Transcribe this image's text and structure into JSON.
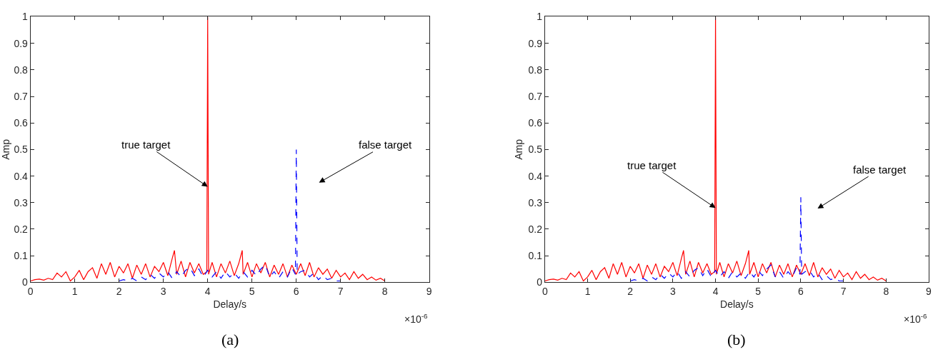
{
  "chart_data": [
    {
      "type": "line",
      "xlabel": "Delay/s",
      "ylabel": "Amp",
      "xlim": [
        0,
        9
      ],
      "xticks": [
        0,
        1,
        2,
        3,
        4,
        5,
        6,
        7,
        8,
        9
      ],
      "ylim": [
        0,
        1
      ],
      "yticks": [
        0,
        0.1,
        0.2,
        0.3,
        0.4,
        0.5,
        0.6,
        0.7,
        0.8,
        0.9,
        1
      ],
      "series": [
        {
          "color": "#ff0000",
          "line_style": "solid",
          "x": [
            0,
            0.1,
            0.2,
            0.3,
            0.4,
            0.5,
            0.6,
            0.7,
            0.8,
            0.9,
            1.0,
            1.1,
            1.2,
            1.3,
            1.4,
            1.5,
            1.6,
            1.7,
            1.8,
            1.9,
            2.0,
            2.1,
            2.2,
            2.3,
            2.4,
            2.5,
            2.6,
            2.7,
            2.8,
            2.9,
            3.0,
            3.1,
            3.2,
            3.25,
            3.3,
            3.4,
            3.5,
            3.6,
            3.7,
            3.8,
            3.9,
            3.98,
            4.0,
            4.02,
            4.1,
            4.2,
            4.3,
            4.4,
            4.5,
            4.6,
            4.7,
            4.78,
            4.8,
            4.9,
            5.0,
            5.1,
            5.2,
            5.3,
            5.4,
            5.5,
            5.6,
            5.7,
            5.8,
            5.9,
            6.0,
            6.1,
            6.2,
            6.3,
            6.4,
            6.5,
            6.6,
            6.7,
            6.8,
            6.9,
            7.0,
            7.1,
            7.2,
            7.3,
            7.4,
            7.5,
            7.6,
            7.7,
            7.8,
            7.9,
            8.0
          ],
          "values": [
            0.005,
            0.01,
            0.012,
            0.008,
            0.015,
            0.01,
            0.035,
            0.02,
            0.04,
            0.005,
            0.02,
            0.045,
            0.01,
            0.04,
            0.055,
            0.015,
            0.07,
            0.03,
            0.075,
            0.02,
            0.06,
            0.035,
            0.07,
            0.015,
            0.065,
            0.03,
            0.07,
            0.02,
            0.06,
            0.04,
            0.075,
            0.025,
            0.09,
            0.12,
            0.03,
            0.08,
            0.02,
            0.075,
            0.035,
            0.07,
            0.03,
            0.04,
            1,
            0.03,
            0.075,
            0.02,
            0.07,
            0.035,
            0.08,
            0.025,
            0.07,
            0.12,
            0.03,
            0.075,
            0.02,
            0.07,
            0.035,
            0.075,
            0.02,
            0.065,
            0.03,
            0.07,
            0.02,
            0.065,
            0.03,
            0.07,
            0.025,
            0.075,
            0.02,
            0.055,
            0.03,
            0.05,
            0.015,
            0.045,
            0.02,
            0.035,
            0.01,
            0.04,
            0.015,
            0.03,
            0.01,
            0.02,
            0.008,
            0.015,
            0.005
          ]
        },
        {
          "color": "#0000ff",
          "line_style": "dashed",
          "x": [
            2.0,
            2.1,
            2.2,
            2.3,
            2.4,
            2.5,
            2.6,
            2.7,
            2.8,
            2.9,
            3.0,
            3.1,
            3.2,
            3.3,
            3.4,
            3.5,
            3.6,
            3.7,
            3.8,
            3.9,
            4.0,
            4.1,
            4.2,
            4.3,
            4.4,
            4.5,
            4.6,
            4.7,
            4.8,
            4.9,
            5.0,
            5.1,
            5.2,
            5.3,
            5.4,
            5.5,
            5.6,
            5.7,
            5.8,
            5.9,
            5.98,
            6.0,
            6.02,
            6.1,
            6.2,
            6.3,
            6.4,
            6.5,
            6.6,
            6.7,
            6.8,
            6.9,
            7.0
          ],
          "values": [
            0.005,
            0.01,
            0.005,
            0.015,
            0.005,
            0.02,
            0.01,
            0.03,
            0.015,
            0.035,
            0.02,
            0.04,
            0.015,
            0.04,
            0.02,
            0.045,
            0.055,
            0.025,
            0.05,
            0.02,
            0.045,
            0.02,
            0.04,
            0.015,
            0.04,
            0.02,
            0.035,
            0.015,
            0.04,
            0.02,
            0.045,
            0.025,
            0.05,
            0.065,
            0.02,
            0.04,
            0.015,
            0.04,
            0.02,
            0.055,
            0.03,
            0.5,
            0.03,
            0.04,
            0.045,
            0.02,
            0.035,
            0.01,
            0.025,
            0.01,
            0.015,
            0.005,
            0.005
          ]
        }
      ],
      "annotations": [
        {
          "text": "true target",
          "x": 4,
          "y": 0.36
        },
        "false target",
        "×10$^{-6}$",
        "(a)"
      ]
    },
    {
      "type": "line",
      "xlabel": "Delay/s",
      "ylabel": "Amp",
      "xlim": [
        0,
        9
      ],
      "xticks": [
        0,
        1,
        2,
        3,
        4,
        5,
        6,
        7,
        8,
        9
      ],
      "ylim": [
        0,
        1
      ],
      "yticks": [
        0,
        0.1,
        0.2,
        0.3,
        0.4,
        0.5,
        0.6,
        0.7,
        0.8,
        0.9,
        1
      ],
      "series": [
        {
          "color": "#ff0000",
          "line_style": "solid",
          "x": [
            0,
            0.1,
            0.2,
            0.3,
            0.4,
            0.5,
            0.6,
            0.7,
            0.8,
            0.9,
            1.0,
            1.1,
            1.2,
            1.3,
            1.4,
            1.5,
            1.6,
            1.7,
            1.8,
            1.9,
            2.0,
            2.1,
            2.2,
            2.3,
            2.4,
            2.5,
            2.6,
            2.7,
            2.8,
            2.9,
            3.0,
            3.1,
            3.2,
            3.25,
            3.3,
            3.4,
            3.5,
            3.6,
            3.7,
            3.8,
            3.9,
            3.98,
            4.0,
            4.02,
            4.1,
            4.2,
            4.3,
            4.4,
            4.5,
            4.6,
            4.7,
            4.78,
            4.8,
            4.9,
            5.0,
            5.1,
            5.2,
            5.3,
            5.4,
            5.5,
            5.6,
            5.7,
            5.8,
            5.9,
            6.0,
            6.1,
            6.2,
            6.3,
            6.4,
            6.5,
            6.6,
            6.7,
            6.8,
            6.9,
            7.0,
            7.1,
            7.2,
            7.3,
            7.4,
            7.5,
            7.6,
            7.7,
            7.8,
            7.9,
            8.0
          ],
          "values": [
            0.005,
            0.01,
            0.012,
            0.008,
            0.015,
            0.01,
            0.035,
            0.02,
            0.04,
            0.005,
            0.02,
            0.045,
            0.01,
            0.04,
            0.055,
            0.015,
            0.07,
            0.03,
            0.075,
            0.02,
            0.06,
            0.035,
            0.07,
            0.015,
            0.065,
            0.03,
            0.07,
            0.02,
            0.06,
            0.04,
            0.075,
            0.025,
            0.09,
            0.12,
            0.03,
            0.08,
            0.02,
            0.075,
            0.035,
            0.07,
            0.03,
            0.04,
            1,
            0.03,
            0.075,
            0.02,
            0.07,
            0.035,
            0.08,
            0.025,
            0.07,
            0.12,
            0.03,
            0.075,
            0.02,
            0.07,
            0.035,
            0.075,
            0.02,
            0.065,
            0.03,
            0.07,
            0.02,
            0.065,
            0.03,
            0.07,
            0.025,
            0.075,
            0.02,
            0.055,
            0.03,
            0.05,
            0.015,
            0.045,
            0.02,
            0.035,
            0.01,
            0.04,
            0.015,
            0.03,
            0.01,
            0.02,
            0.008,
            0.015,
            0.005
          ]
        },
        {
          "color": "#0000ff",
          "line_style": "dashed",
          "x": [
            2.0,
            2.1,
            2.2,
            2.3,
            2.4,
            2.5,
            2.6,
            2.7,
            2.8,
            2.9,
            3.0,
            3.1,
            3.2,
            3.3,
            3.4,
            3.5,
            3.6,
            3.7,
            3.8,
            3.9,
            4.0,
            4.1,
            4.2,
            4.3,
            4.4,
            4.5,
            4.6,
            4.7,
            4.8,
            4.9,
            5.0,
            5.1,
            5.2,
            5.3,
            5.4,
            5.5,
            5.6,
            5.7,
            5.8,
            5.9,
            5.98,
            6.0,
            6.02,
            6.1,
            6.2,
            6.3,
            6.4,
            6.5,
            6.6,
            6.7,
            6.8,
            6.9,
            7.0
          ],
          "values": [
            0.005,
            0.01,
            0.005,
            0.015,
            0.005,
            0.02,
            0.01,
            0.03,
            0.015,
            0.035,
            0.02,
            0.04,
            0.015,
            0.04,
            0.02,
            0.045,
            0.055,
            0.025,
            0.05,
            0.02,
            0.045,
            0.02,
            0.04,
            0.015,
            0.04,
            0.02,
            0.035,
            0.015,
            0.04,
            0.02,
            0.045,
            0.025,
            0.05,
            0.065,
            0.02,
            0.04,
            0.015,
            0.04,
            0.02,
            0.055,
            0.03,
            0.32,
            0.03,
            0.04,
            0.045,
            0.02,
            0.035,
            0.01,
            0.025,
            0.01,
            0.015,
            0.005,
            0.005
          ]
        }
      ],
      "annotations": [
        {
          "text": "true target",
          "x": 4,
          "y": 0.28
        },
        "false target",
        "×10$^{-6}$",
        "(b)"
      ]
    }
  ]
}
